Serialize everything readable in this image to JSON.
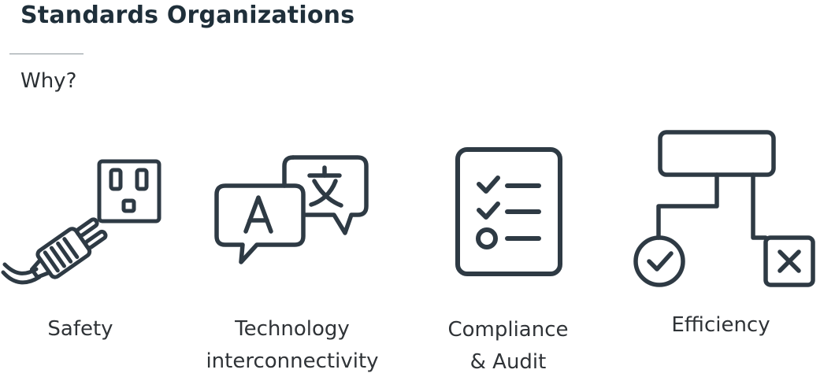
{
  "slide": {
    "title": "Standards Organizations",
    "subtitle": "Why?"
  },
  "items": [
    {
      "icon": "plug-outlet-icon",
      "caption_lines": [
        "Safety"
      ]
    },
    {
      "icon": "translation-bubbles-icon",
      "caption_lines": [
        "Technology",
        "interconnectivity"
      ]
    },
    {
      "icon": "checklist-icon",
      "caption_lines": [
        "Compliance",
        "& Audit"
      ]
    },
    {
      "icon": "flowchart-icon",
      "caption_lines": [
        "Efficiency"
      ]
    }
  ],
  "colors": {
    "icon_stroke": "#2e3a44",
    "title": "#1f2f3a",
    "text": "#2f3337"
  }
}
